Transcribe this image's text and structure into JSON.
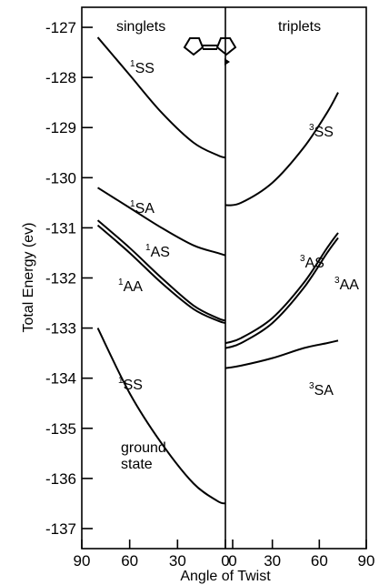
{
  "chart_data": {
    "type": "line",
    "ylabel": "Total Energy (ev)",
    "xlabel": "Angle of Twist",
    "panels": [
      "singlets",
      "triplets"
    ],
    "ylim": [
      -137.4,
      -126.6
    ],
    "y_ticks": [
      -127,
      -128,
      -129,
      -130,
      -131,
      -132,
      -133,
      -134,
      -135,
      -136,
      -137
    ],
    "x_ticks_left": [
      90,
      60,
      30,
      0
    ],
    "x_ticks_right": [
      0,
      30,
      60,
      90
    ],
    "series": [
      {
        "name": "1SS",
        "label_sup": "1",
        "label_main": "SS",
        "side": "singlets",
        "color": "#000000",
        "points": [
          [
            80,
            -127.2
          ],
          [
            60,
            -127.95
          ],
          [
            40,
            -128.7
          ],
          [
            20,
            -129.3
          ],
          [
            5,
            -129.55
          ],
          [
            0,
            -129.6
          ]
        ]
      },
      {
        "name": "1SA",
        "label_sup": "1",
        "label_main": "SA",
        "side": "singlets",
        "color": "#000000",
        "points": [
          [
            80,
            -130.2
          ],
          [
            60,
            -130.6
          ],
          [
            40,
            -131.0
          ],
          [
            20,
            -131.35
          ],
          [
            5,
            -131.5
          ],
          [
            0,
            -131.55
          ]
        ]
      },
      {
        "name": "1AS",
        "label_sup": "1",
        "label_main": "AS",
        "side": "singlets",
        "color": "#000000",
        "points": [
          [
            80,
            -130.85
          ],
          [
            60,
            -131.4
          ],
          [
            40,
            -132.0
          ],
          [
            20,
            -132.55
          ],
          [
            5,
            -132.8
          ],
          [
            0,
            -132.85
          ]
        ]
      },
      {
        "name": "1AA",
        "label_sup": "1",
        "label_main": "AA",
        "side": "singlets",
        "color": "#000000",
        "points": [
          [
            80,
            -130.95
          ],
          [
            60,
            -131.5
          ],
          [
            40,
            -132.1
          ],
          [
            20,
            -132.62
          ],
          [
            5,
            -132.85
          ],
          [
            0,
            -132.9
          ]
        ]
      },
      {
        "name": "1SS ground state",
        "label_sup": "1",
        "label_main": "SS",
        "side": "singlets",
        "color": "#000000",
        "points": [
          [
            80,
            -133.0
          ],
          [
            60,
            -134.3
          ],
          [
            40,
            -135.3
          ],
          [
            20,
            -136.1
          ],
          [
            5,
            -136.45
          ],
          [
            0,
            -136.5
          ]
        ]
      },
      {
        "name": "3SS",
        "label_sup": "3",
        "label_main": "SS",
        "side": "triplets",
        "color": "#000000",
        "points": [
          [
            0,
            -130.55
          ],
          [
            10,
            -130.5
          ],
          [
            30,
            -130.1
          ],
          [
            50,
            -129.4
          ],
          [
            65,
            -128.7
          ],
          [
            72,
            -128.3
          ]
        ]
      },
      {
        "name": "3AS",
        "label_sup": "3",
        "label_main": "AS",
        "side": "triplets",
        "color": "#000000",
        "points": [
          [
            0,
            -133.3
          ],
          [
            10,
            -133.2
          ],
          [
            30,
            -132.8
          ],
          [
            50,
            -132.1
          ],
          [
            65,
            -131.4
          ],
          [
            72,
            -131.1
          ]
        ]
      },
      {
        "name": "3AA",
        "label_sup": "3",
        "label_main": "AA",
        "side": "triplets",
        "color": "#000000",
        "points": [
          [
            0,
            -133.4
          ],
          [
            10,
            -133.3
          ],
          [
            30,
            -132.9
          ],
          [
            50,
            -132.2
          ],
          [
            65,
            -131.5
          ],
          [
            72,
            -131.2
          ]
        ]
      },
      {
        "name": "3SA",
        "label_sup": "3",
        "label_main": "SA",
        "side": "triplets",
        "color": "#000000",
        "points": [
          [
            0,
            -133.8
          ],
          [
            10,
            -133.75
          ],
          [
            30,
            -133.6
          ],
          [
            50,
            -133.4
          ],
          [
            65,
            -133.3
          ],
          [
            72,
            -133.25
          ]
        ]
      }
    ],
    "annotation": "ground\nstate"
  }
}
